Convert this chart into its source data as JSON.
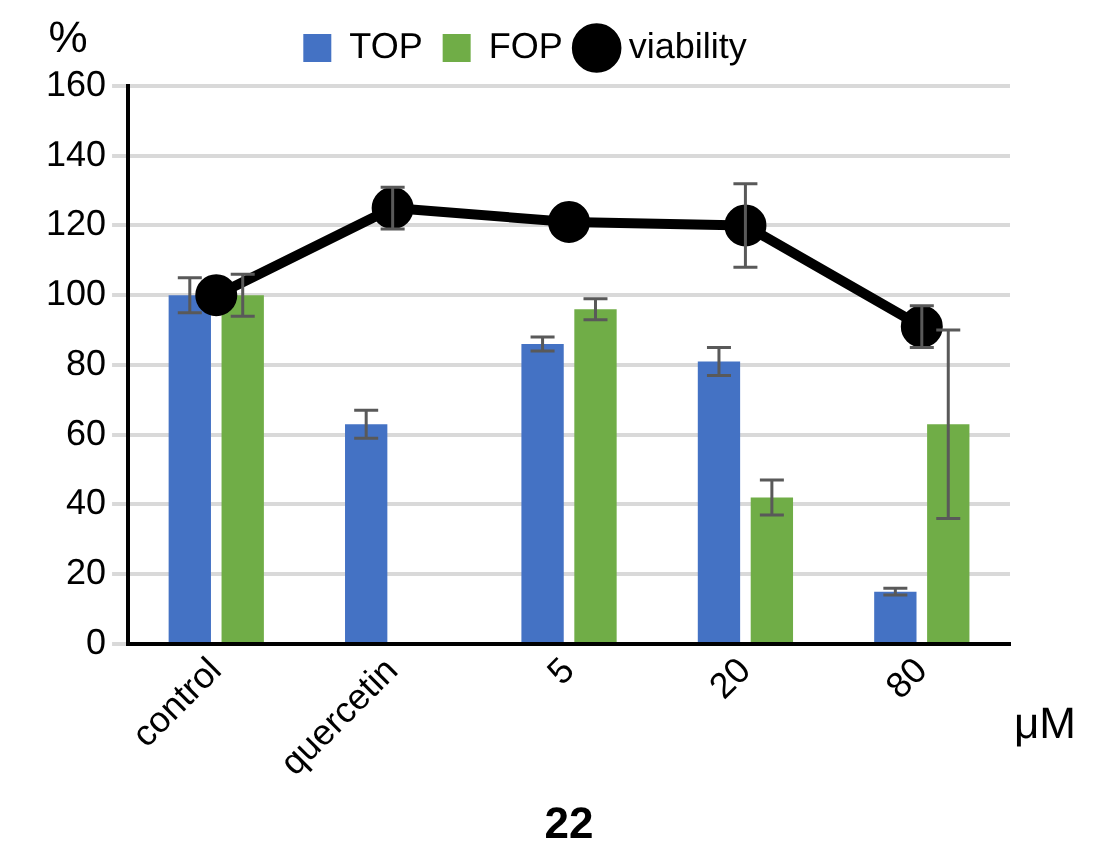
{
  "chart_data": {
    "type": "bar",
    "ylabel": "%",
    "xlabel": "22",
    "annotations": [
      "μM"
    ],
    "categories": [
      "control",
      "quercetin",
      "5",
      "20",
      "80"
    ],
    "series": [
      {
        "name": "TOP",
        "color": "#4472c4",
        "values": [
          100,
          63,
          86,
          81,
          15
        ],
        "errors": [
          5,
          4,
          2,
          4,
          1
        ]
      },
      {
        "name": "FOP",
        "color": "#70ad47",
        "values": [
          100,
          null,
          96,
          42,
          63
        ],
        "errors": [
          6,
          null,
          3,
          5,
          27
        ]
      },
      {
        "name": "viability",
        "type": "line",
        "color": "#000000",
        "values": [
          100,
          125,
          121,
          120,
          91
        ],
        "errors": [
          null,
          6,
          null,
          12,
          6
        ],
        "marker": "circle"
      }
    ],
    "ylim": [
      0,
      160
    ],
    "yticks": [
      0,
      20,
      40,
      60,
      80,
      100,
      120,
      140,
      160
    ],
    "grid": "y",
    "legend": "top"
  }
}
